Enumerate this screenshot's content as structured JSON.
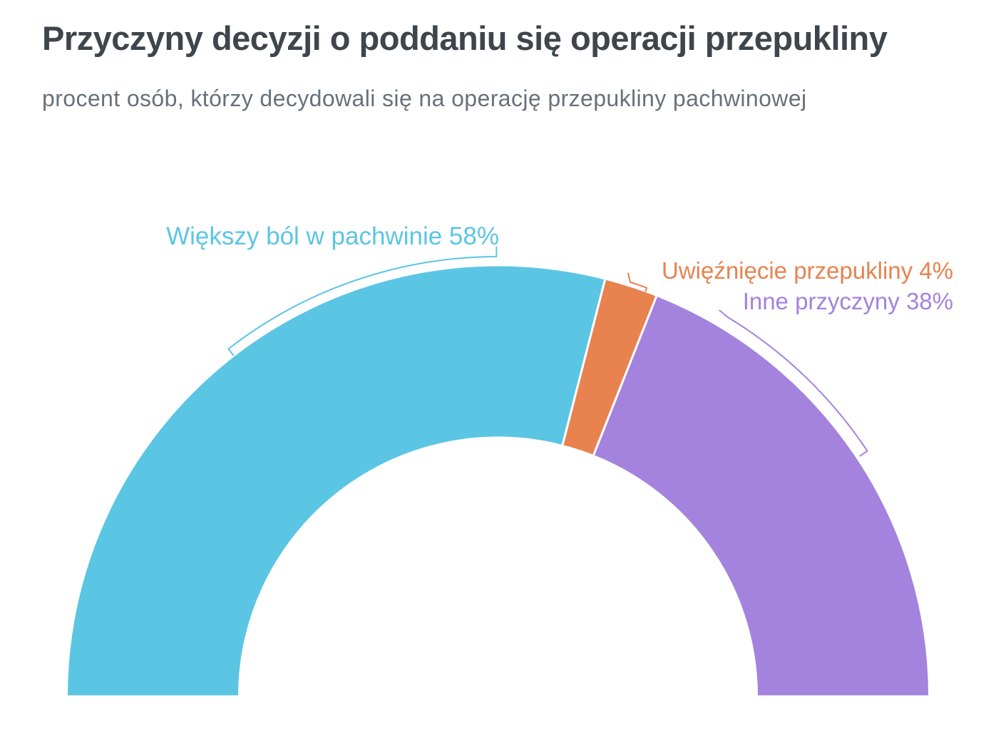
{
  "header": {
    "title": "Przyczyny decyzji o poddaniu się operacji przepukliny",
    "subtitle": "procent osób, którzy decydowali się na operację przepukliny pachwinowej"
  },
  "colors": {
    "title_text": "#3f454c",
    "subtitle_text": "#68707a",
    "background": "#ffffff",
    "segment_gap": "#ffffff"
  },
  "chart_data": {
    "type": "pie",
    "variant": "half-donut",
    "title": "Przyczyny decyzji o poddaniu się operacji przepukliny",
    "subtitle": "procent osób, którzy decydowali się na operację przepukliny pachwinowej",
    "unit": "%",
    "start_angle_deg": 180,
    "end_angle_deg": 0,
    "legend": "none",
    "series": [
      {
        "id": "wiekszy-bol-w-pachwinie",
        "name": "Większy ból w pachwinie",
        "value": 58,
        "color": "#5bc5e4",
        "label": "Większy ból w pachwinie 58%"
      },
      {
        "id": "uwieznienie-przepukliny",
        "name": "Uwięźnięcie przepukliny",
        "value": 4,
        "color": "#e8824e",
        "label": "Uwięźnięcie przepukliny 4%"
      },
      {
        "id": "inne-przyczyny",
        "name": "Inne przyczyny",
        "value": 38,
        "color": "#a383dd",
        "label": "Inne przyczyny 38%"
      }
    ]
  }
}
